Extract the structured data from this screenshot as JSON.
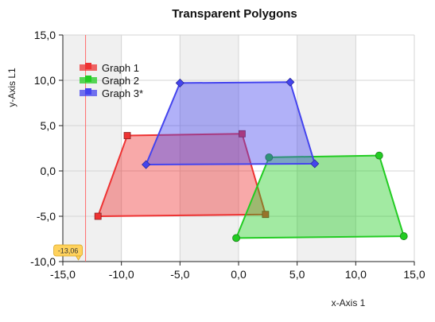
{
  "chart_data": {
    "type": "area",
    "title": "Transparent Polygons",
    "xlabel": "x-Axis 1",
    "ylabel": "y-Axis L1",
    "xlim": [
      -15,
      15
    ],
    "ylim": [
      -10,
      15
    ],
    "x_ticks": [
      -15,
      -10,
      -5,
      0,
      5,
      10,
      15
    ],
    "y_ticks": [
      -10,
      -5,
      0,
      5,
      10,
      15
    ],
    "x_tick_labels": [
      "-15,0",
      "-10,0",
      "-5,0",
      "0,0",
      "5,0",
      "10,0",
      "15,0"
    ],
    "y_tick_labels": [
      "-10,0",
      "-5,0",
      "0,0",
      "5,0",
      "10,0",
      "15,0"
    ],
    "grid": true,
    "alternating_bands": true,
    "legend_position": "top-left",
    "cursor": {
      "x": -13.06,
      "label": "-13,06"
    },
    "series": [
      {
        "name": "Graph 1",
        "color": "#ee3333",
        "marker": "square",
        "points": [
          [
            -12,
            -5
          ],
          [
            -9.5,
            3.9
          ],
          [
            0.3,
            4.1
          ],
          [
            2.3,
            -4.8
          ]
        ]
      },
      {
        "name": "Graph 2",
        "color": "#22cc22",
        "marker": "circle",
        "points": [
          [
            -0.2,
            -7.4
          ],
          [
            2.6,
            1.5
          ],
          [
            12,
            1.7
          ],
          [
            14.1,
            -7.2
          ]
        ]
      },
      {
        "name": "Graph 3*",
        "color": "#4444ee",
        "marker": "diamond",
        "points": [
          [
            -7.9,
            0.7
          ],
          [
            -5,
            9.7
          ],
          [
            4.4,
            9.8
          ],
          [
            6.5,
            0.8
          ]
        ]
      }
    ]
  }
}
